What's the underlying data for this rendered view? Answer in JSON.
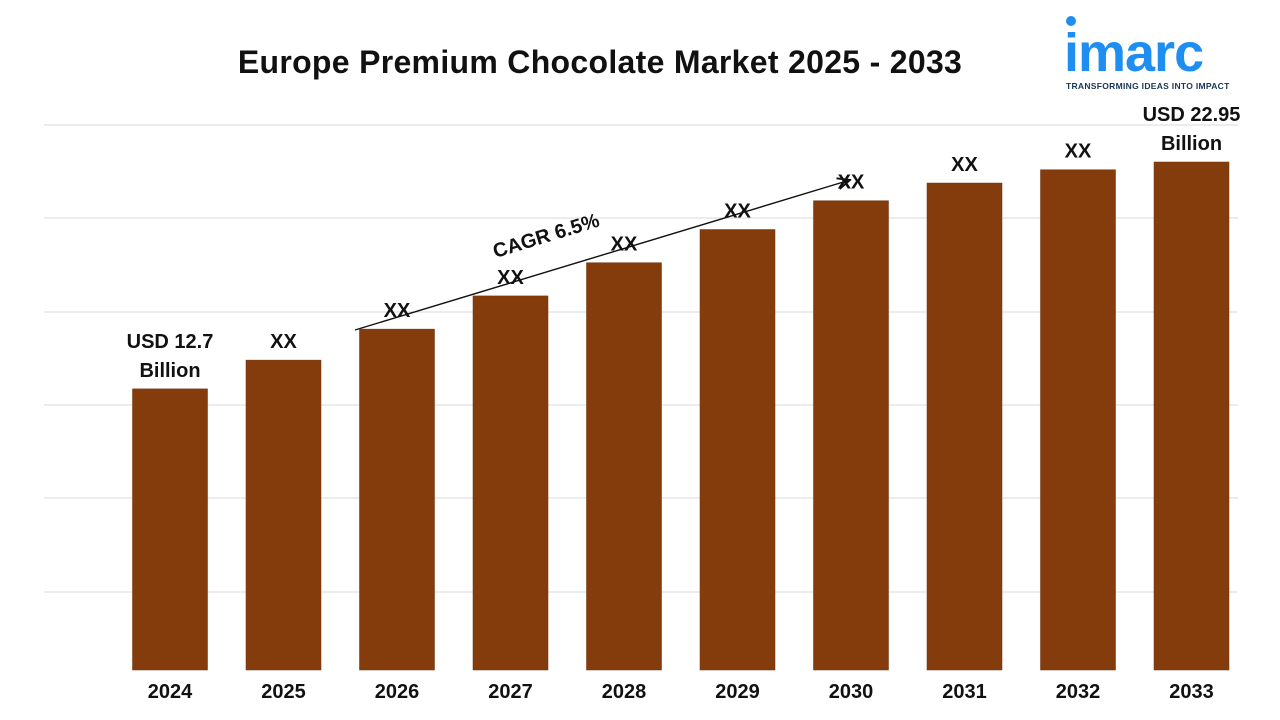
{
  "logo": {
    "name": "imarc",
    "tagline": "TRANSFORMING IDEAS INTO IMPACT",
    "color": "#1f8ef1"
  },
  "chart_data": {
    "type": "bar",
    "title": "Europe Premium Chocolate Market 2025 - 2033",
    "xlabel": "",
    "ylabel": "",
    "grid": true,
    "bar_color": "#843c0c",
    "categories": [
      "2024",
      "2025",
      "2026",
      "2027",
      "2028",
      "2029",
      "2030",
      "2031",
      "2032",
      "2033"
    ],
    "values": [
      12.7,
      14.0,
      15.4,
      16.9,
      18.4,
      19.9,
      21.2,
      22.0,
      22.6,
      22.95
    ],
    "data_labels": [
      [
        "USD 12.7",
        "Billion"
      ],
      [
        "XX"
      ],
      [
        "XX"
      ],
      [
        "XX"
      ],
      [
        "XX"
      ],
      [
        "XX"
      ],
      [
        "XX"
      ],
      [
        "XX"
      ],
      [
        "XX"
      ],
      [
        "USD 22.95",
        "Billion"
      ]
    ],
    "annotation": "CAGR 6.5%"
  }
}
